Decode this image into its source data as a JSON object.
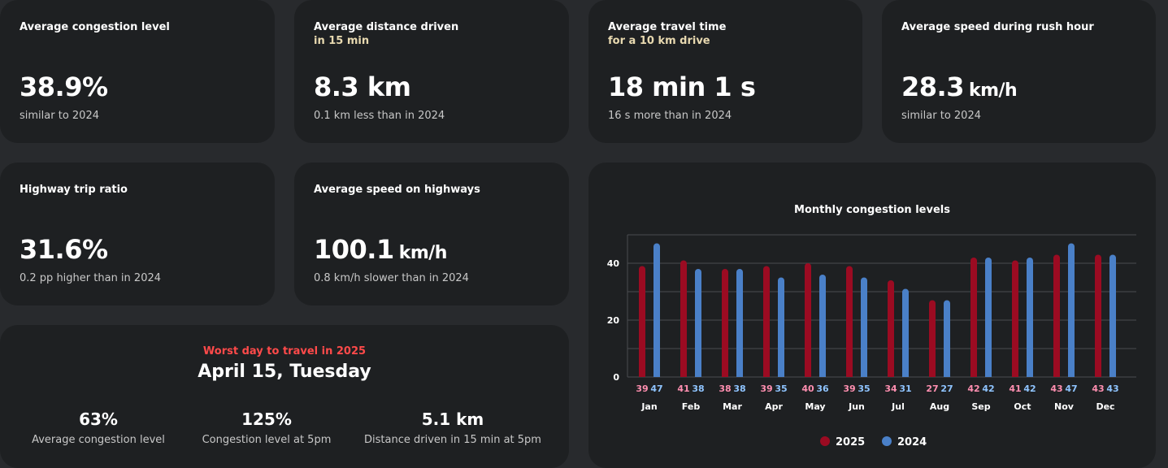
{
  "cards": {
    "congestion": {
      "title": "Average congestion level",
      "value": "38.9%",
      "note": "similar to 2024"
    },
    "distance": {
      "title": "Average distance driven",
      "subtitle": "in 15 min",
      "value": "8.3 km",
      "note": "0.1 km less than in 2024"
    },
    "travel_time": {
      "title": "Average travel time",
      "subtitle": "for a 10 km drive",
      "value": "18 min 1 s",
      "note": "16 s more than in 2024"
    },
    "rush_speed": {
      "title": "Average speed during rush hour",
      "value": "28.3",
      "unit": "km/h",
      "note": "similar to 2024"
    },
    "highway_ratio": {
      "title": "Highway trip ratio",
      "value": "31.6%",
      "note": "0.2 pp higher than in 2024"
    },
    "highway_speed": {
      "title": "Average speed on highways",
      "value": "100.1",
      "unit": "km/h",
      "note": "0.8 km/h slower than in 2024"
    }
  },
  "worst_day": {
    "label": "Worst day to travel in 2025",
    "date": "April 15, Tuesday",
    "stats": [
      {
        "value": "63%",
        "label": "Average congestion level"
      },
      {
        "value": "125%",
        "label": "Congestion level at 5pm"
      },
      {
        "value": "5.1 km",
        "label": "Distance driven in 15 min at 5pm"
      }
    ]
  },
  "colors": {
    "y2025": "#9b0b22",
    "y2024": "#4a80c8",
    "label2025": "#ff8fb0",
    "label2024": "#8fc4ff"
  },
  "chart_data": {
    "type": "bar",
    "title": "Monthly congestion levels",
    "categories": [
      "Jan",
      "Feb",
      "Mar",
      "Apr",
      "May",
      "Jun",
      "Jul",
      "Aug",
      "Sep",
      "Oct",
      "Nov",
      "Dec"
    ],
    "series": [
      {
        "name": "2025",
        "values": [
          39,
          41,
          38,
          39,
          40,
          39,
          34,
          27,
          42,
          41,
          43,
          43
        ]
      },
      {
        "name": "2024",
        "values": [
          47,
          38,
          38,
          35,
          36,
          35,
          31,
          27,
          42,
          42,
          47,
          43
        ]
      }
    ],
    "yticks": [
      0,
      20,
      40
    ],
    "ylim": [
      0,
      50
    ],
    "legend": "bottom-center",
    "xlabel": "",
    "ylabel": ""
  }
}
